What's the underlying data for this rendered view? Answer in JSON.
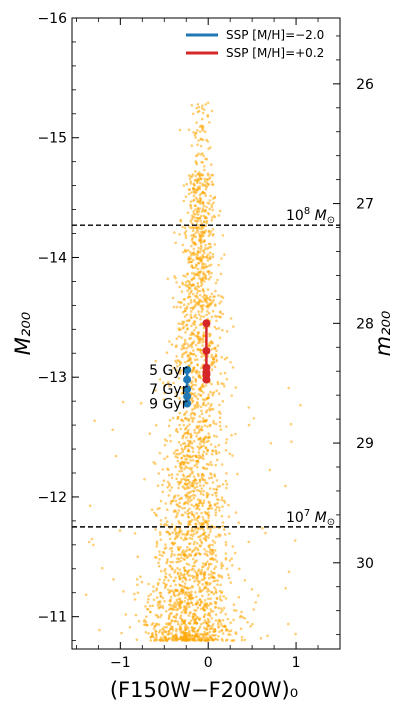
{
  "chart_data": {
    "type": "scatter",
    "title": "",
    "xlabel": "(F150W−F200W)₀",
    "ylabel_left": "M₂₀₀",
    "ylabel_right": "m₂₀₀",
    "xlim": [
      -1.55,
      1.5
    ],
    "ylim_left": [
      -16.0,
      -10.73
    ],
    "ylim_right_top": 25.45,
    "distance_modulus": 41.45,
    "x_ticks": [
      -1,
      0,
      1
    ],
    "x_tick_labels": [
      "−1",
      "0",
      "1"
    ],
    "y_left_ticks": [
      -16,
      -15,
      -14,
      -13,
      -12,
      -11
    ],
    "y_left_tick_labels": [
      "−16",
      "−15",
      "−14",
      "−13",
      "−12",
      "−11"
    ],
    "y_right_ticks": [
      26,
      27,
      28,
      29,
      30
    ],
    "y_right_tick_labels": [
      "26",
      "27",
      "28",
      "29",
      "30"
    ],
    "grid": false,
    "legend_position": "top-right",
    "scatter_color": "#FFA500",
    "series": [
      {
        "name": "SSP [M/H]=−2.0",
        "color": "#1f77b4",
        "x": [
          -0.24,
          -0.24,
          -0.24,
          -0.24,
          -0.24
        ],
        "y": [
          -13.06,
          -12.98,
          -12.9,
          -12.84,
          -12.78
        ],
        "labels": [
          "5 Gyr",
          "7 Gyr",
          "9 Gyr"
        ],
        "label_points": [
          0,
          2,
          4
        ]
      },
      {
        "name": "SSP [M/H]=+0.2",
        "color": "#d62728",
        "x": [
          -0.02,
          -0.02,
          -0.02,
          -0.02,
          -0.02,
          -0.02
        ],
        "y": [
          -13.45,
          -13.22,
          -13.08,
          -13.04,
          -13.02,
          -12.98
        ]
      }
    ],
    "hlines": [
      {
        "y": -14.27,
        "label_base": "10",
        "label_exp": "8",
        "label_unit": " M",
        "label_sub": "⊙"
      },
      {
        "y": -11.75,
        "label_base": "10",
        "label_exp": "7",
        "label_unit": " M",
        "label_sub": "⊙"
      }
    ]
  }
}
